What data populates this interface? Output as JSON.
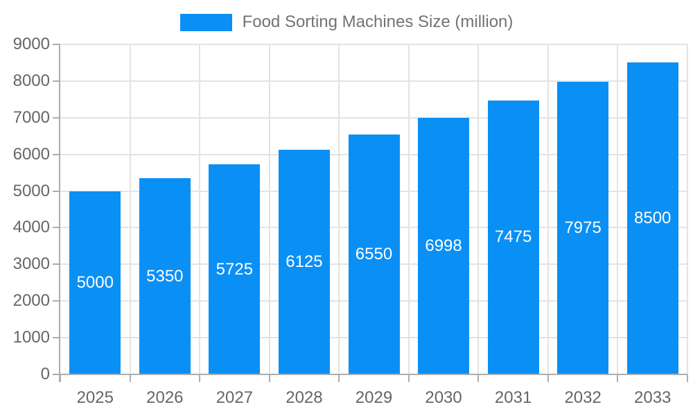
{
  "chart_data": {
    "type": "bar",
    "title": "",
    "legend_label": "Food Sorting Machines Size (million)",
    "legend_position": "top",
    "categories": [
      "2025",
      "2026",
      "2027",
      "2028",
      "2029",
      "2030",
      "2031",
      "2032",
      "2033"
    ],
    "values": [
      5000,
      5350,
      5725,
      6125,
      6550,
      6998,
      7475,
      7975,
      8500
    ],
    "xlabel": "",
    "ylabel": "",
    "ylim": [
      0,
      9000
    ],
    "ytick_step": 1000,
    "grid": true,
    "value_labels": "inside-center",
    "colors": {
      "bar": "#0a8ff5",
      "grid": "#e3e3e3",
      "axis": "#adadad",
      "tick_label": "#666666",
      "legend_text": "#737373",
      "value_label": "#ffffff",
      "background": "#ffffff"
    }
  }
}
